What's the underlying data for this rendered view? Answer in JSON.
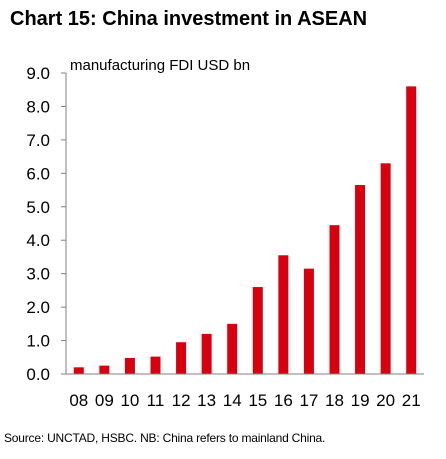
{
  "title": "Chart 15: China investment in ASEAN",
  "source": "Source: UNCTAD, HSBC. NB: China refers to mainland China.",
  "chart_data": {
    "type": "bar",
    "unit_label": "manufacturing  FDI USD bn",
    "categories": [
      "08",
      "09",
      "10",
      "11",
      "12",
      "13",
      "14",
      "15",
      "16",
      "17",
      "18",
      "19",
      "20",
      "21"
    ],
    "values": [
      0.2,
      0.25,
      0.48,
      0.52,
      0.95,
      1.2,
      1.5,
      2.6,
      3.55,
      3.15,
      4.45,
      5.65,
      6.3,
      8.6
    ],
    "ylim": [
      0,
      9
    ],
    "yticks": [
      "0.0",
      "1.0",
      "2.0",
      "3.0",
      "4.0",
      "5.0",
      "6.0",
      "7.0",
      "8.0",
      "9.0"
    ],
    "bar_color": "#d7000f",
    "grid": false
  }
}
